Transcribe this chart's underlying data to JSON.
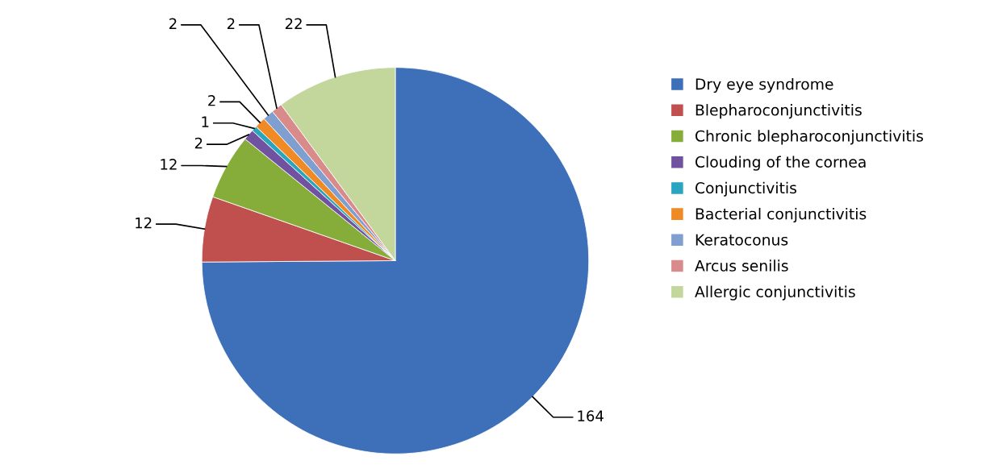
{
  "chart_data": {
    "type": "pie",
    "categories": [
      "Dry eye syndrome",
      "Blepharoconjunctivitis",
      "Chronic blepharoconjunctivitis",
      "Clouding of the cornea",
      "Conjunctivitis",
      "Bacterial conjunctivitis",
      "Keratoconus",
      "Arcus senilis",
      "Allergic conjunctivitis"
    ],
    "values": [
      164,
      12,
      12,
      2,
      1,
      2,
      2,
      2,
      22
    ],
    "colors": [
      "#3d70b9",
      "#c0504d",
      "#86ad3a",
      "#7052a0",
      "#2aa5c0",
      "#f08a24",
      "#7f9fd0",
      "#d98a8a",
      "#c3d69b"
    ],
    "data_labels": true,
    "legend": "right"
  }
}
